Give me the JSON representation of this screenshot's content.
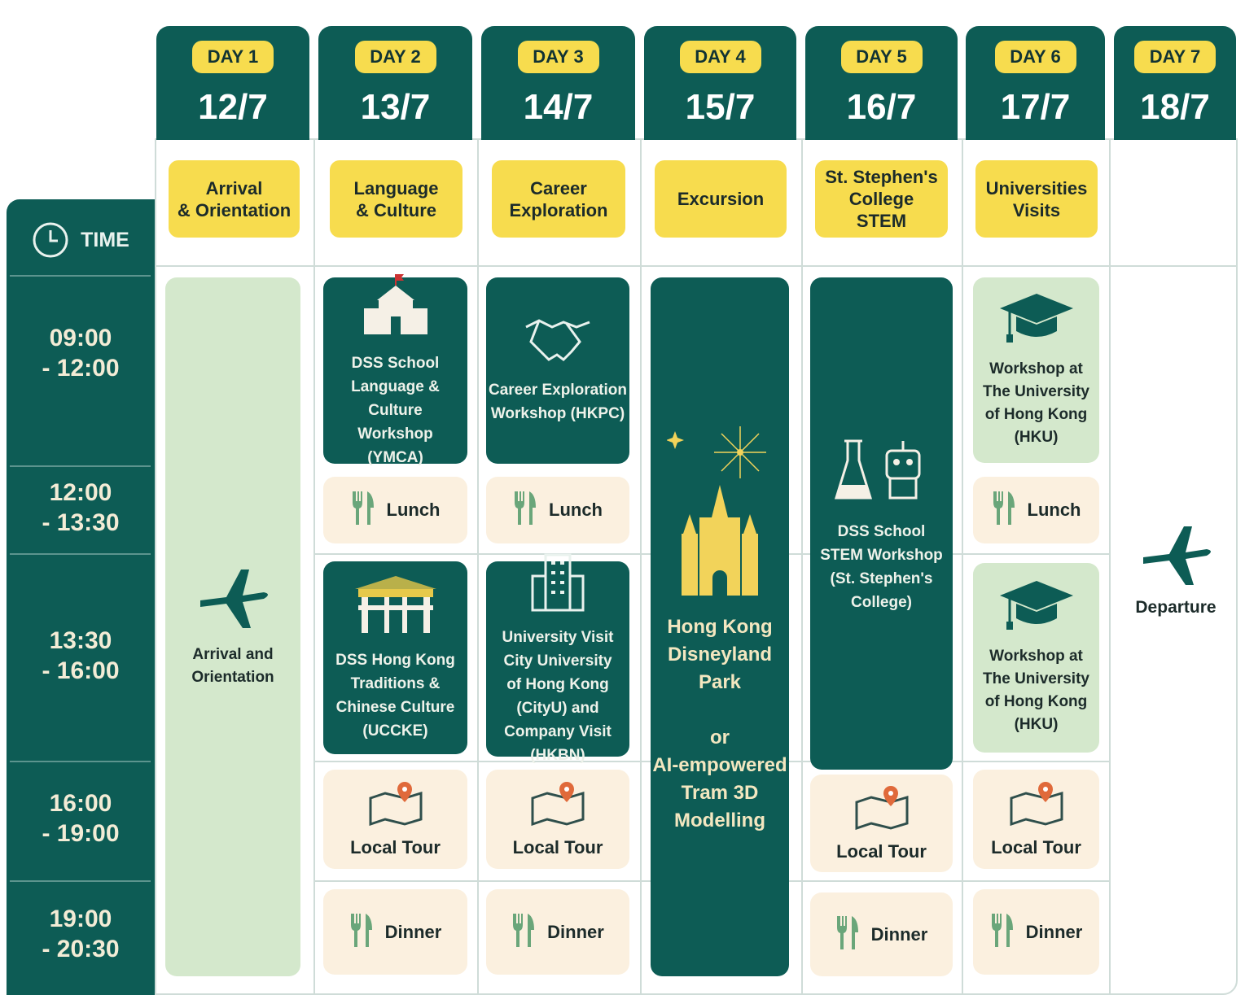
{
  "time_header": "TIME",
  "time_slots": [
    {
      "start": "09:00",
      "end": "- 12:00"
    },
    {
      "start": "12:00",
      "end": "- 13:30"
    },
    {
      "start": "13:30",
      "end": "- 16:00"
    },
    {
      "start": "16:00",
      "end": "- 19:00"
    },
    {
      "start": "19:00",
      "end": "- 20:30"
    }
  ],
  "days": [
    {
      "badge": "DAY 1",
      "date": "12/7",
      "theme": "Arrival\n& Orientation",
      "events": [
        "Arrival and\nOrientation"
      ]
    },
    {
      "badge": "DAY 2",
      "date": "13/7",
      "theme": "Language\n& Culture",
      "events": [
        "DSS School\nLanguage & Culture\nWorkshop\n(YMCA)",
        "Lunch",
        "DSS Hong Kong\nTraditions &\nChinese Culture\n(UCCKE)",
        "Local Tour",
        "Dinner"
      ]
    },
    {
      "badge": "DAY 3",
      "date": "14/7",
      "theme": "Career\nExploration",
      "events": [
        "Career Exploration\nWorkshop (HKPC)",
        "Lunch",
        "University Visit\nCity University\nof Hong Kong\n(CityU) and\nCompany Visit\n(HKBN)",
        "Local Tour",
        "Dinner"
      ]
    },
    {
      "badge": "DAY 4",
      "date": "15/7",
      "theme": "Excursion",
      "events": [
        "Hong Kong\nDisneyland\nPark\n\nor\nAI-empowered\nTram 3D\nModelling"
      ]
    },
    {
      "badge": "DAY 5",
      "date": "16/7",
      "theme": "St. Stephen's\nCollege\nSTEM",
      "events": [
        "DSS School\nSTEM Workshop\n(St. Stephen's\nCollege)",
        "Local Tour",
        "Dinner"
      ]
    },
    {
      "badge": "DAY 6",
      "date": "17/7",
      "theme": "Universities\nVisits",
      "events": [
        "Workshop at\nThe University\nof Hong Kong\n(HKU)",
        "Lunch",
        "Workshop at\nThe University\nof Hong Kong\n(HKU)",
        "Local Tour",
        "Dinner"
      ]
    },
    {
      "badge": "DAY 7",
      "date": "18/7",
      "events": [
        "Departure"
      ]
    }
  ]
}
